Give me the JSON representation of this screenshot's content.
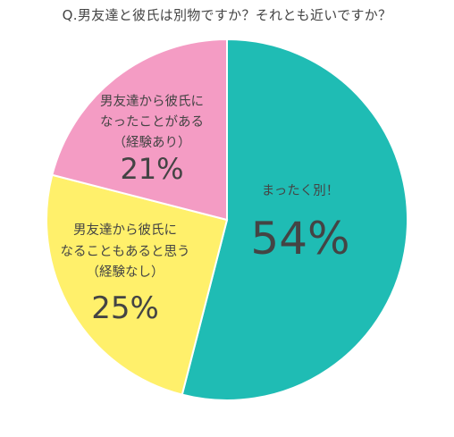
{
  "chart_data": {
    "type": "pie",
    "title": "Q.男友達と彼氏は別物ですか？それとも近いですか？",
    "colors": [
      "#1fbcb4",
      "#fff06b",
      "#f49cc4"
    ],
    "slices": [
      {
        "label_lines": [
          "まったく別！"
        ],
        "value": 54,
        "value_label": "54%"
      },
      {
        "label_lines": [
          "男友達から彼氏に",
          "なることもあると思う",
          "（経験なし）"
        ],
        "value": 25,
        "value_label": "25%"
      },
      {
        "label_lines": [
          "男友達から彼氏に",
          "なったことがある",
          "（経験あり）"
        ],
        "value": 21,
        "value_label": "21%"
      }
    ],
    "legend": "none"
  }
}
